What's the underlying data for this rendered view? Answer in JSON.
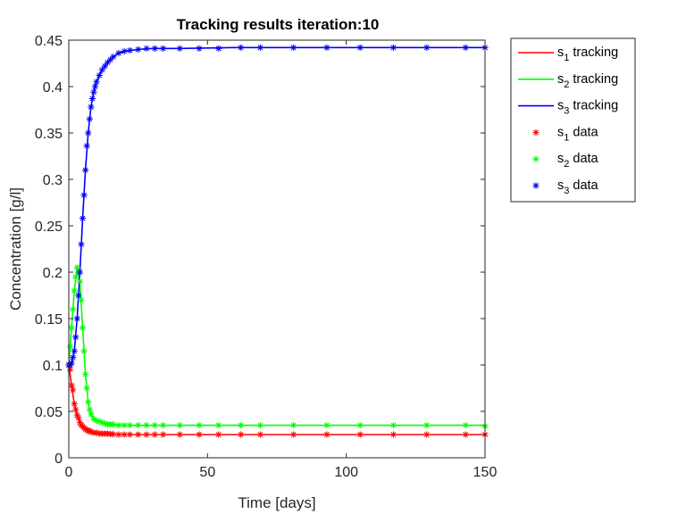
{
  "chart_data": {
    "type": "line",
    "title": "Tracking results iteration:10",
    "xlabel": "Time [days]",
    "ylabel": "Concentration [g/l]",
    "xlim": [
      0,
      150
    ],
    "ylim": [
      0,
      0.45
    ],
    "xticks": [
      0,
      50,
      100,
      150
    ],
    "yticks": [
      0,
      0.05,
      0.1,
      0.15,
      0.2,
      0.25,
      0.3,
      0.35,
      0.4,
      0.45
    ],
    "xtick_labels": [
      "0",
      "50",
      "100",
      "150"
    ],
    "ytick_labels": [
      "0",
      "0.05",
      "0.1",
      "0.15",
      "0.2",
      "0.25",
      "0.3",
      "0.35",
      "0.4",
      "0.45"
    ],
    "grid": false,
    "legend_position": "outside-top-right",
    "series": [
      {
        "name": "s1 tracking",
        "base": "s",
        "sub": "1",
        "label": "tracking",
        "kind": "line",
        "color": "#ff0000",
        "x": [
          0,
          1,
          2,
          3,
          4,
          5,
          6,
          7,
          8,
          10,
          12,
          15,
          20,
          30,
          50,
          80,
          120,
          150
        ],
        "y": [
          0.1,
          0.078,
          0.058,
          0.046,
          0.038,
          0.034,
          0.031,
          0.029,
          0.028,
          0.027,
          0.026,
          0.0255,
          0.025,
          0.025,
          0.025,
          0.025,
          0.025,
          0.025
        ]
      },
      {
        "name": "s2 tracking",
        "base": "s",
        "sub": "2",
        "label": "tracking",
        "kind": "line",
        "color": "#00ff00",
        "x": [
          0,
          1,
          2,
          3,
          4,
          5,
          6,
          7,
          8,
          9,
          10,
          12,
          15,
          20,
          30,
          50,
          80,
          120,
          150
        ],
        "y": [
          0.1,
          0.14,
          0.18,
          0.205,
          0.19,
          0.14,
          0.09,
          0.06,
          0.047,
          0.042,
          0.04,
          0.038,
          0.036,
          0.035,
          0.035,
          0.035,
          0.035,
          0.035,
          0.035
        ]
      },
      {
        "name": "s3 tracking",
        "base": "s",
        "sub": "3",
        "label": "tracking",
        "kind": "line",
        "color": "#0000ff",
        "x": [
          0,
          1,
          2,
          3,
          4,
          5,
          6,
          7,
          8,
          9,
          10,
          12,
          14,
          16,
          18,
          20,
          25,
          30,
          40,
          60,
          100,
          150
        ],
        "y": [
          0.1,
          0.102,
          0.115,
          0.15,
          0.2,
          0.258,
          0.31,
          0.35,
          0.378,
          0.394,
          0.405,
          0.418,
          0.426,
          0.432,
          0.436,
          0.438,
          0.44,
          0.441,
          0.441,
          0.442,
          0.442,
          0.442
        ]
      },
      {
        "name": "s1 data",
        "base": "s",
        "sub": "1",
        "label": "data",
        "kind": "marker",
        "color": "#ff0000",
        "x": [
          0,
          0.5,
          1,
          1.5,
          2,
          2.5,
          3,
          3.5,
          4,
          4.5,
          5,
          5.5,
          6,
          6.5,
          7,
          7.5,
          8,
          9,
          10,
          11,
          12,
          13,
          14,
          15,
          16,
          18,
          20,
          22,
          25,
          28,
          31,
          34,
          40,
          47,
          54,
          62,
          69,
          81,
          93,
          105,
          117,
          129,
          143,
          150
        ],
        "y": [
          0.1,
          0.095,
          0.078,
          0.073,
          0.058,
          0.052,
          0.046,
          0.043,
          0.038,
          0.035,
          0.034,
          0.032,
          0.031,
          0.03,
          0.029,
          0.029,
          0.028,
          0.027,
          0.027,
          0.026,
          0.026,
          0.026,
          0.026,
          0.0255,
          0.0255,
          0.025,
          0.025,
          0.025,
          0.025,
          0.025,
          0.025,
          0.025,
          0.025,
          0.025,
          0.025,
          0.025,
          0.025,
          0.025,
          0.025,
          0.025,
          0.025,
          0.025,
          0.025,
          0.025
        ]
      },
      {
        "name": "s2 data",
        "base": "s",
        "sub": "2",
        "label": "data",
        "kind": "marker",
        "color": "#00ff00",
        "x": [
          0,
          0.5,
          1,
          1.5,
          2,
          2.5,
          3,
          3.5,
          4,
          4.5,
          5,
          5.5,
          6,
          6.5,
          7,
          7.5,
          8,
          9,
          10,
          11,
          12,
          13,
          14,
          15,
          16,
          18,
          20,
          22,
          25,
          28,
          31,
          34,
          40,
          47,
          54,
          62,
          69,
          81,
          93,
          105,
          117,
          129,
          143,
          150
        ],
        "y": [
          0.1,
          0.12,
          0.14,
          0.16,
          0.18,
          0.195,
          0.205,
          0.2,
          0.19,
          0.17,
          0.14,
          0.115,
          0.09,
          0.075,
          0.06,
          0.052,
          0.047,
          0.042,
          0.04,
          0.039,
          0.038,
          0.037,
          0.036,
          0.036,
          0.036,
          0.035,
          0.035,
          0.035,
          0.035,
          0.035,
          0.035,
          0.035,
          0.035,
          0.035,
          0.035,
          0.035,
          0.035,
          0.035,
          0.035,
          0.035,
          0.035,
          0.035,
          0.035,
          0.034
        ]
      },
      {
        "name": "s3 data",
        "base": "s",
        "sub": "3",
        "label": "data",
        "kind": "marker",
        "color": "#0000ff",
        "x": [
          0,
          0.5,
          1,
          1.5,
          2,
          2.5,
          3,
          3.5,
          4,
          4.5,
          5,
          5.5,
          6,
          6.5,
          7,
          7.5,
          8,
          8.5,
          9,
          9.5,
          10,
          11,
          12,
          13,
          14,
          15,
          16,
          18,
          20,
          22,
          25,
          28,
          31,
          34,
          40,
          47,
          54,
          62,
          69,
          81,
          93,
          105,
          117,
          129,
          143,
          150
        ],
        "y": [
          0.1,
          0.1,
          0.102,
          0.108,
          0.115,
          0.13,
          0.15,
          0.175,
          0.2,
          0.23,
          0.258,
          0.283,
          0.31,
          0.336,
          0.35,
          0.365,
          0.378,
          0.387,
          0.394,
          0.4,
          0.405,
          0.412,
          0.418,
          0.422,
          0.426,
          0.429,
          0.432,
          0.436,
          0.438,
          0.439,
          0.44,
          0.441,
          0.441,
          0.441,
          0.441,
          0.441,
          0.441,
          0.442,
          0.442,
          0.442,
          0.442,
          0.442,
          0.442,
          0.442,
          0.442,
          0.442
        ]
      }
    ]
  }
}
